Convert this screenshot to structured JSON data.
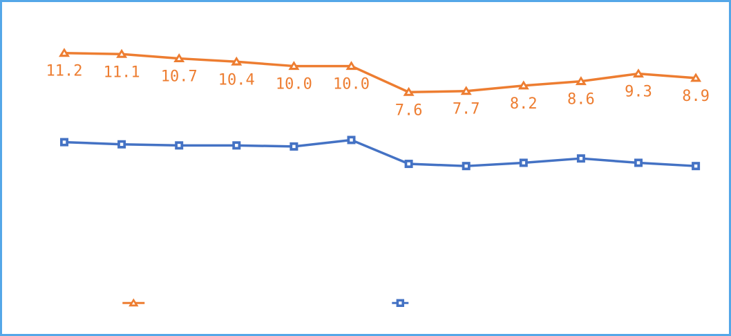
{
  "frame": {
    "border_color": "#54A7E8",
    "background_color": "#FFFFFF"
  },
  "chart_data": {
    "type": "line",
    "title": "",
    "points_per_series": 12,
    "grid": false,
    "axes_visible": false,
    "legend": {
      "position": "bottom-center",
      "labels_visible": false
    },
    "series": [
      {
        "name": "orange-triangle-series",
        "color": "#ED7D31",
        "marker": "triangle",
        "values": [
          11.2,
          11.1,
          10.7,
          10.4,
          10.0,
          10.0,
          7.6,
          7.7,
          8.2,
          8.6,
          9.3,
          8.9
        ],
        "data_labels": [
          "11.2",
          "11.1",
          "10.7",
          "10.4",
          "10.0",
          "10.0",
          "7.6",
          "7.7",
          "8.2",
          "8.6",
          "9.3",
          "8.9"
        ],
        "labels_visible": true
      },
      {
        "name": "blue-square-series",
        "color": "#4472C4",
        "marker": "square",
        "values": [
          3.0,
          2.8,
          2.7,
          2.7,
          2.6,
          3.2,
          1.0,
          0.8,
          1.1,
          1.5,
          1.1,
          0.8
        ],
        "values_estimated_from_pixels": true,
        "data_labels": [],
        "labels_visible": false
      }
    ]
  }
}
